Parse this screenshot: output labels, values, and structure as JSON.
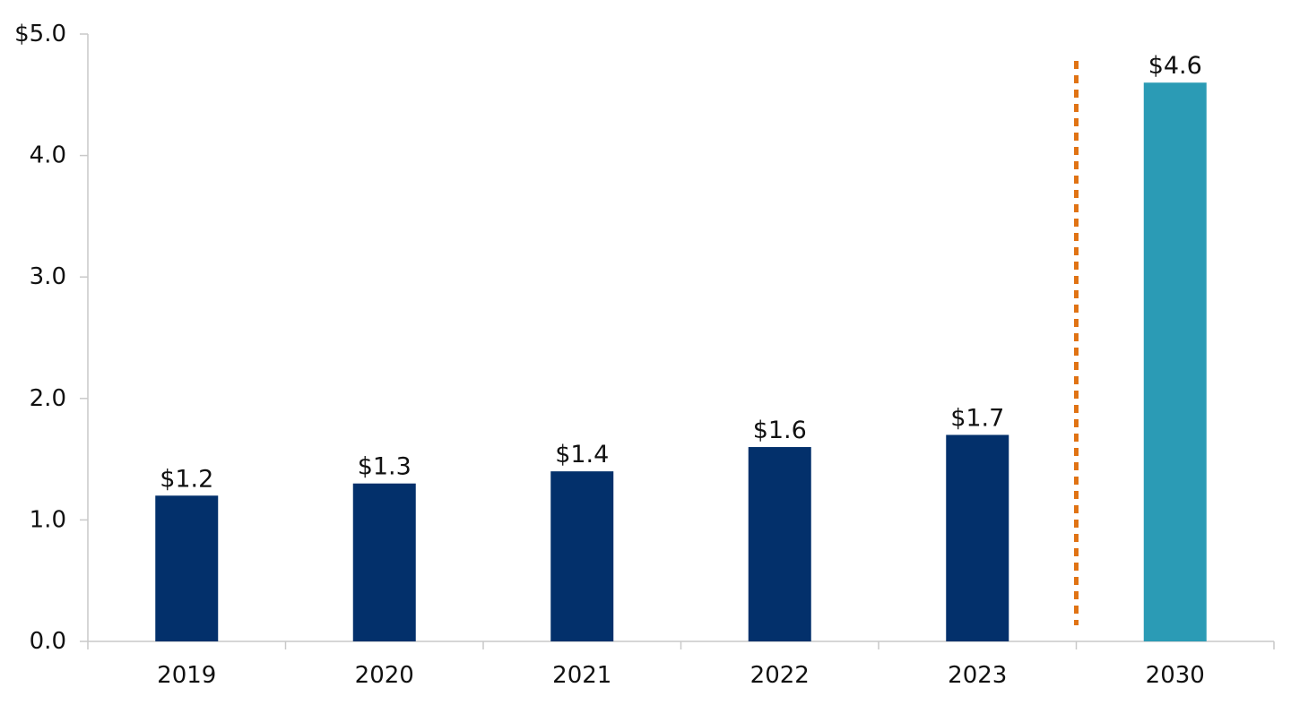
{
  "chart_data": {
    "type": "bar",
    "title": "",
    "xlabel": "",
    "ylabel": "",
    "categories": [
      "2019",
      "2020",
      "2021",
      "2022",
      "2023",
      "2030"
    ],
    "values": [
      1.2,
      1.3,
      1.4,
      1.6,
      1.7,
      4.6
    ],
    "data_labels": [
      "$1.2",
      "$1.3",
      "$1.4",
      "$1.6",
      "$1.7",
      "$4.6"
    ],
    "ylim": [
      0,
      5
    ],
    "yticks": [
      0,
      1,
      2,
      3,
      4,
      5
    ],
    "ytick_labels": [
      "0.0",
      "1.0",
      "2.0",
      "3.0",
      "4.0",
      "$5.0"
    ],
    "grid": false,
    "legend": "none",
    "divider_between": [
      "2023",
      "2030"
    ],
    "colors": {
      "historical_bar": "#03306b",
      "projected_bar": "#2b9bb5",
      "divider": "#e07314",
      "axis": "#c9c9c9",
      "text": "#111111"
    },
    "bar_color_keys": [
      "historical_bar",
      "historical_bar",
      "historical_bar",
      "historical_bar",
      "historical_bar",
      "projected_bar"
    ]
  }
}
